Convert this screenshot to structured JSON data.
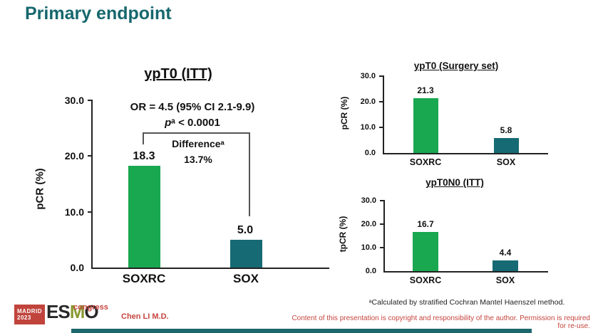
{
  "slide": {
    "title": "Primary endpoint",
    "presenter": "Chen LI M.D.",
    "copyright": "Content of this presentation is copyright and responsibility of the author. Permission is required for re-use.",
    "footnote": "ᵃCalculated by stratified Cochran Mantel Haenszel method.",
    "logo": {
      "city": "MADRID",
      "year": "2023",
      "name_es": "ES",
      "name_m": "M",
      "name_o": "O",
      "event": "congress"
    }
  },
  "colors": {
    "title_teal": "#16676d",
    "bar_green": "#19a750",
    "bar_teal": "#166a74",
    "red_text": "#c5453e",
    "logo_red": "#c0443c",
    "logo_olive": "#8a9a33",
    "bottom_bar": "#1d686e"
  },
  "chart_data": [
    {
      "type": "bar",
      "title": "ypT0 (ITT)",
      "categories": [
        "SOXRC",
        "SOX"
      ],
      "values": [
        18.3,
        5.0
      ],
      "value_labels": [
        "18.3",
        "5.0"
      ],
      "xlabel": "",
      "ylabel": "pCR (%)",
      "ylim": [
        0,
        30
      ],
      "yticks": [
        "30.0",
        "20.0",
        "10.0",
        "0.0"
      ],
      "grid": false,
      "legend": "none",
      "bar_colors": [
        "#19a750",
        "#166a74"
      ],
      "annotations": {
        "or": "OR = 4.5 (95% CI 2.1-9.9)",
        "p_var": "p",
        "p_rest": "ᵃ < 0.0001",
        "difference_label": "Differenceᵃ",
        "difference_value": "13.7%"
      }
    },
    {
      "type": "bar",
      "title": "ypT0 (Surgery set)",
      "categories": [
        "SOXRC",
        "SOX"
      ],
      "values": [
        21.3,
        5.8
      ],
      "value_labels": [
        "21.3",
        "5.8"
      ],
      "xlabel": "",
      "ylabel": "pCR (%)",
      "ylim": [
        0,
        30
      ],
      "yticks": [
        "30.0",
        "20.0",
        "10.0",
        "0.0"
      ],
      "grid": false,
      "legend": "none",
      "bar_colors": [
        "#19a750",
        "#166a74"
      ]
    },
    {
      "type": "bar",
      "title": "ypT0N0 (ITT)",
      "categories": [
        "SOXRC",
        "SOX"
      ],
      "values": [
        16.7,
        4.4
      ],
      "value_labels": [
        "16.7",
        "4.4"
      ],
      "xlabel": "",
      "ylabel": "tpCR (%)",
      "ylim": [
        0,
        30
      ],
      "yticks": [
        "30.0",
        "20.0",
        "10.0",
        "0.0"
      ],
      "grid": false,
      "legend": "none",
      "bar_colors": [
        "#19a750",
        "#166a74"
      ]
    }
  ]
}
